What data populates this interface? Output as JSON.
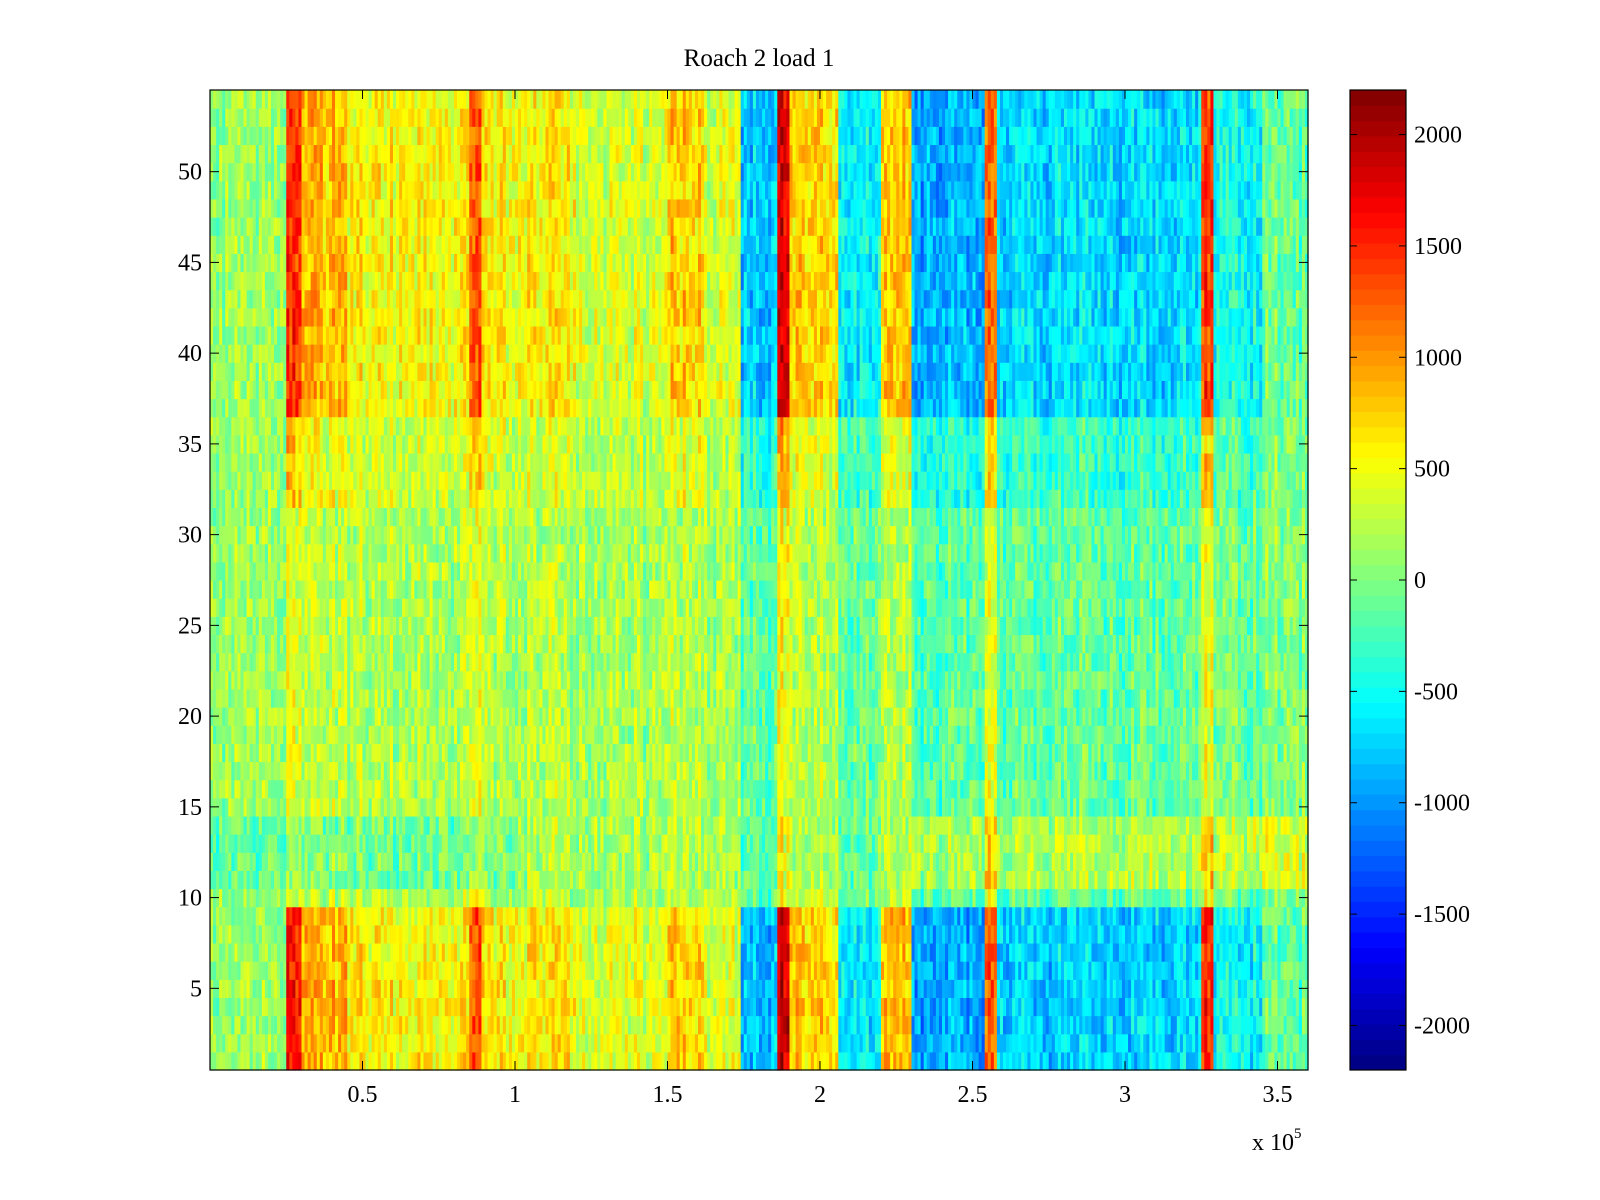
{
  "chart_data": {
    "type": "heatmap",
    "title": "Roach 2 load 1",
    "xlabel": "",
    "ylabel": "",
    "x_multiplier_label": "x 10",
    "x_multiplier_exponent": "5",
    "xlim": [
      0,
      3.6
    ],
    "ylim": [
      0.5,
      54.5
    ],
    "x_ticks": [
      0.5,
      1,
      1.5,
      2,
      2.5,
      3,
      3.5
    ],
    "x_tick_labels": [
      "0.5",
      "1",
      "1.5",
      "2",
      "2.5",
      "3",
      "3.5"
    ],
    "y_ticks": [
      5,
      10,
      15,
      20,
      25,
      30,
      35,
      40,
      45,
      50
    ],
    "y_tick_labels": [
      "5",
      "10",
      "15",
      "20",
      "25",
      "30",
      "35",
      "40",
      "45",
      "50"
    ],
    "rows": 54,
    "colormap": "jet",
    "clim": [
      -2200,
      2200
    ],
    "colorbar_ticks": [
      2000,
      1500,
      1000,
      500,
      0,
      -500,
      -1000,
      -1500,
      -2000
    ],
    "colorbar_tick_labels": [
      "2000",
      "1500",
      "1000",
      "500",
      "0",
      "-500",
      "-1000",
      "-1500",
      "-2000"
    ],
    "column_bands": [
      {
        "x_start": 0.25,
        "x_end": 0.3,
        "value": 1500
      },
      {
        "x_start": 0.3,
        "x_end": 0.45,
        "value": 800
      },
      {
        "x_start": 0.45,
        "x_end": 0.85,
        "value": 500
      },
      {
        "x_start": 0.85,
        "x_end": 0.89,
        "value": 1200
      },
      {
        "x_start": 0.89,
        "x_end": 1.2,
        "value": 500
      },
      {
        "x_start": 1.2,
        "x_end": 1.5,
        "value": 300
      },
      {
        "x_start": 1.5,
        "x_end": 1.62,
        "value": 700
      },
      {
        "x_start": 1.62,
        "x_end": 1.74,
        "value": 300
      },
      {
        "x_start": 1.74,
        "x_end": 1.86,
        "value": -900
      },
      {
        "x_start": 1.86,
        "x_end": 1.9,
        "value": 1800
      },
      {
        "x_start": 1.9,
        "x_end": 2.06,
        "value": 700
      },
      {
        "x_start": 2.06,
        "x_end": 2.2,
        "value": -700
      },
      {
        "x_start": 2.2,
        "x_end": 2.3,
        "value": 800
      },
      {
        "x_start": 2.3,
        "x_end": 2.54,
        "value": -1000
      },
      {
        "x_start": 2.54,
        "x_end": 2.58,
        "value": 1100
      },
      {
        "x_start": 2.58,
        "x_end": 3.25,
        "value": -800
      },
      {
        "x_start": 3.25,
        "x_end": 3.29,
        "value": 1400
      },
      {
        "x_start": 3.29,
        "x_end": 3.45,
        "value": -600
      },
      {
        "x_start": 3.45,
        "x_end": 3.6,
        "value": -200
      }
    ],
    "notes": "Stronger contrast rows 1-9 and 37-54; rows 10-36 near 0 with slight positive bias for x > 2.3 around rows 11-14"
  },
  "colors": {
    "background": "#ffffff",
    "axis": "#000000"
  }
}
